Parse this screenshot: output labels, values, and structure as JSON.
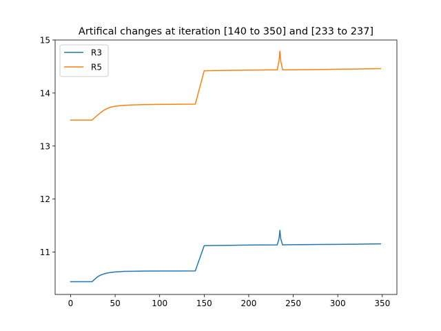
{
  "chart_data": {
    "type": "line",
    "title": "Artifical changes at iteration [140 to 350] and [233 to 237]",
    "xlabel": "",
    "ylabel": "",
    "xlim": [
      -17.4,
      366.4
    ],
    "ylim": [
      10.2,
      15.0
    ],
    "xticks": [
      0,
      50,
      100,
      150,
      200,
      250,
      300,
      350
    ],
    "yticks": [
      11,
      12,
      13,
      14,
      15
    ],
    "grid": false,
    "legend_position": "top-left",
    "series": [
      {
        "name": "R3",
        "color": "#1f77b4",
        "points": [
          [
            0,
            10.44
          ],
          [
            5,
            10.44
          ],
          [
            10,
            10.44
          ],
          [
            15,
            10.44
          ],
          [
            20,
            10.44
          ],
          [
            24,
            10.44
          ],
          [
            26,
            10.47
          ],
          [
            28,
            10.5
          ],
          [
            30,
            10.53
          ],
          [
            33,
            10.56
          ],
          [
            36,
            10.58
          ],
          [
            40,
            10.6
          ],
          [
            45,
            10.615
          ],
          [
            50,
            10.625
          ],
          [
            55,
            10.63
          ],
          [
            60,
            10.635
          ],
          [
            70,
            10.638
          ],
          [
            80,
            10.64
          ],
          [
            100,
            10.642
          ],
          [
            120,
            10.643
          ],
          [
            140,
            10.644
          ],
          [
            150,
            11.12
          ],
          [
            160,
            11.123
          ],
          [
            170,
            11.125
          ],
          [
            180,
            11.127
          ],
          [
            190,
            11.13
          ],
          [
            200,
            11.132
          ],
          [
            210,
            11.133
          ],
          [
            220,
            11.133
          ],
          [
            232,
            11.135
          ],
          [
            234,
            11.25
          ],
          [
            235,
            11.41
          ],
          [
            236,
            11.25
          ],
          [
            238,
            11.135
          ],
          [
            245,
            11.138
          ],
          [
            260,
            11.14
          ],
          [
            280,
            11.143
          ],
          [
            300,
            11.145
          ],
          [
            320,
            11.148
          ],
          [
            340,
            11.152
          ],
          [
            348,
            11.155
          ]
        ]
      },
      {
        "name": "R5",
        "color": "#ff7f0e",
        "points": [
          [
            0,
            13.49
          ],
          [
            5,
            13.49
          ],
          [
            10,
            13.49
          ],
          [
            15,
            13.49
          ],
          [
            20,
            13.49
          ],
          [
            24,
            13.49
          ],
          [
            26,
            13.52
          ],
          [
            28,
            13.55
          ],
          [
            30,
            13.58
          ],
          [
            33,
            13.62
          ],
          [
            36,
            13.66
          ],
          [
            40,
            13.7
          ],
          [
            45,
            13.735
          ],
          [
            50,
            13.75
          ],
          [
            55,
            13.76
          ],
          [
            60,
            13.768
          ],
          [
            70,
            13.775
          ],
          [
            80,
            13.78
          ],
          [
            100,
            13.785
          ],
          [
            120,
            13.788
          ],
          [
            140,
            13.79
          ],
          [
            150,
            14.42
          ],
          [
            160,
            14.422
          ],
          [
            170,
            14.425
          ],
          [
            180,
            14.427
          ],
          [
            190,
            14.43
          ],
          [
            200,
            14.432
          ],
          [
            210,
            14.433
          ],
          [
            220,
            14.435
          ],
          [
            232,
            14.436
          ],
          [
            234,
            14.6
          ],
          [
            235,
            14.79
          ],
          [
            236,
            14.6
          ],
          [
            238,
            14.437
          ],
          [
            245,
            14.438
          ],
          [
            260,
            14.44
          ],
          [
            280,
            14.443
          ],
          [
            300,
            14.448
          ],
          [
            320,
            14.452
          ],
          [
            340,
            14.458
          ],
          [
            348,
            14.46
          ]
        ]
      }
    ]
  }
}
